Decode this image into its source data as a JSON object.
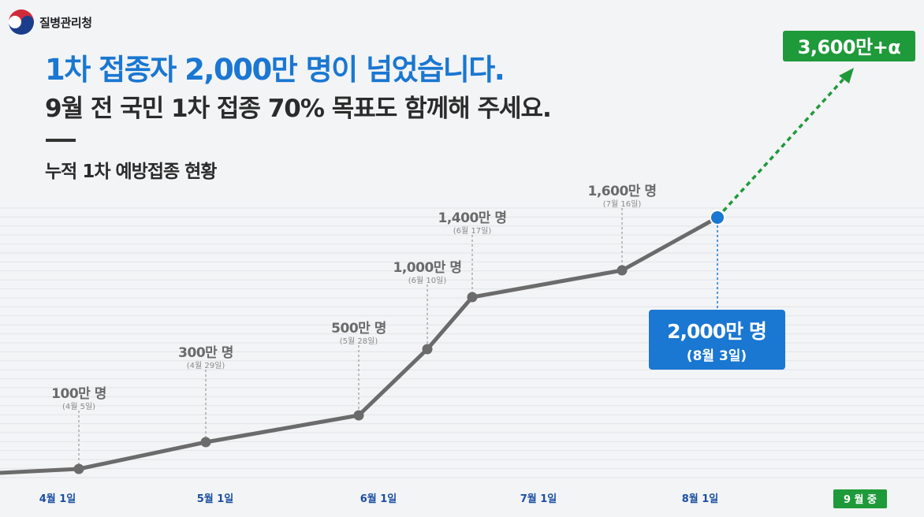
{
  "header": {
    "agency": "질병관리청",
    "headline": "1차 접종자 2,000만 명이 넘었습니다.",
    "subheadline": "9월 전 국민 1차 접종 70% 목표도 함께해 주세요.",
    "section_title": "누적 1차 예방접종 현황"
  },
  "colors": {
    "headline": "#1a77d2",
    "line": "#6b6b6b",
    "highlight": "#1a77d2",
    "projection": "#1f9a3a"
  },
  "chart_data": {
    "type": "line",
    "title": "누적 1차 예방접종 현황",
    "x_tick_labels": [
      "4월 1일",
      "5월 1일",
      "6월 1일",
      "7월 1일",
      "8월 1일"
    ],
    "x_end_label": "9 월 중",
    "series": [
      {
        "points": [
          {
            "date": "4월 1일 이전",
            "value_10k": 0
          },
          {
            "date": "4월 5일",
            "value_10k": 100,
            "label": "100만 명",
            "sublabel": "(4월 5일)"
          },
          {
            "date": "4월 29일",
            "value_10k": 300,
            "label": "300만 명",
            "sublabel": "(4월 29일)"
          },
          {
            "date": "5월 28일",
            "value_10k": 500,
            "label": "500만 명",
            "sublabel": "(5월 28일)"
          },
          {
            "date": "6월 10일",
            "value_10k": 1000,
            "label": "1,000만 명",
            "sublabel": "(6월 10일)"
          },
          {
            "date": "6월 17일",
            "value_10k": 1400,
            "label": "1,400만 명",
            "sublabel": "(6월 17일)"
          },
          {
            "date": "7월 16일",
            "value_10k": 1600,
            "label": "1,600만 명",
            "sublabel": "(7월 16일)"
          },
          {
            "date": "8월 3일",
            "value_10k": 2000,
            "label": "2,000만 명",
            "sublabel": "(8월 3일)",
            "highlight": true
          }
        ]
      }
    ],
    "projection": {
      "date": "9월 중",
      "value_10k": 3600,
      "label": "3,600만+α"
    },
    "grid": true
  }
}
